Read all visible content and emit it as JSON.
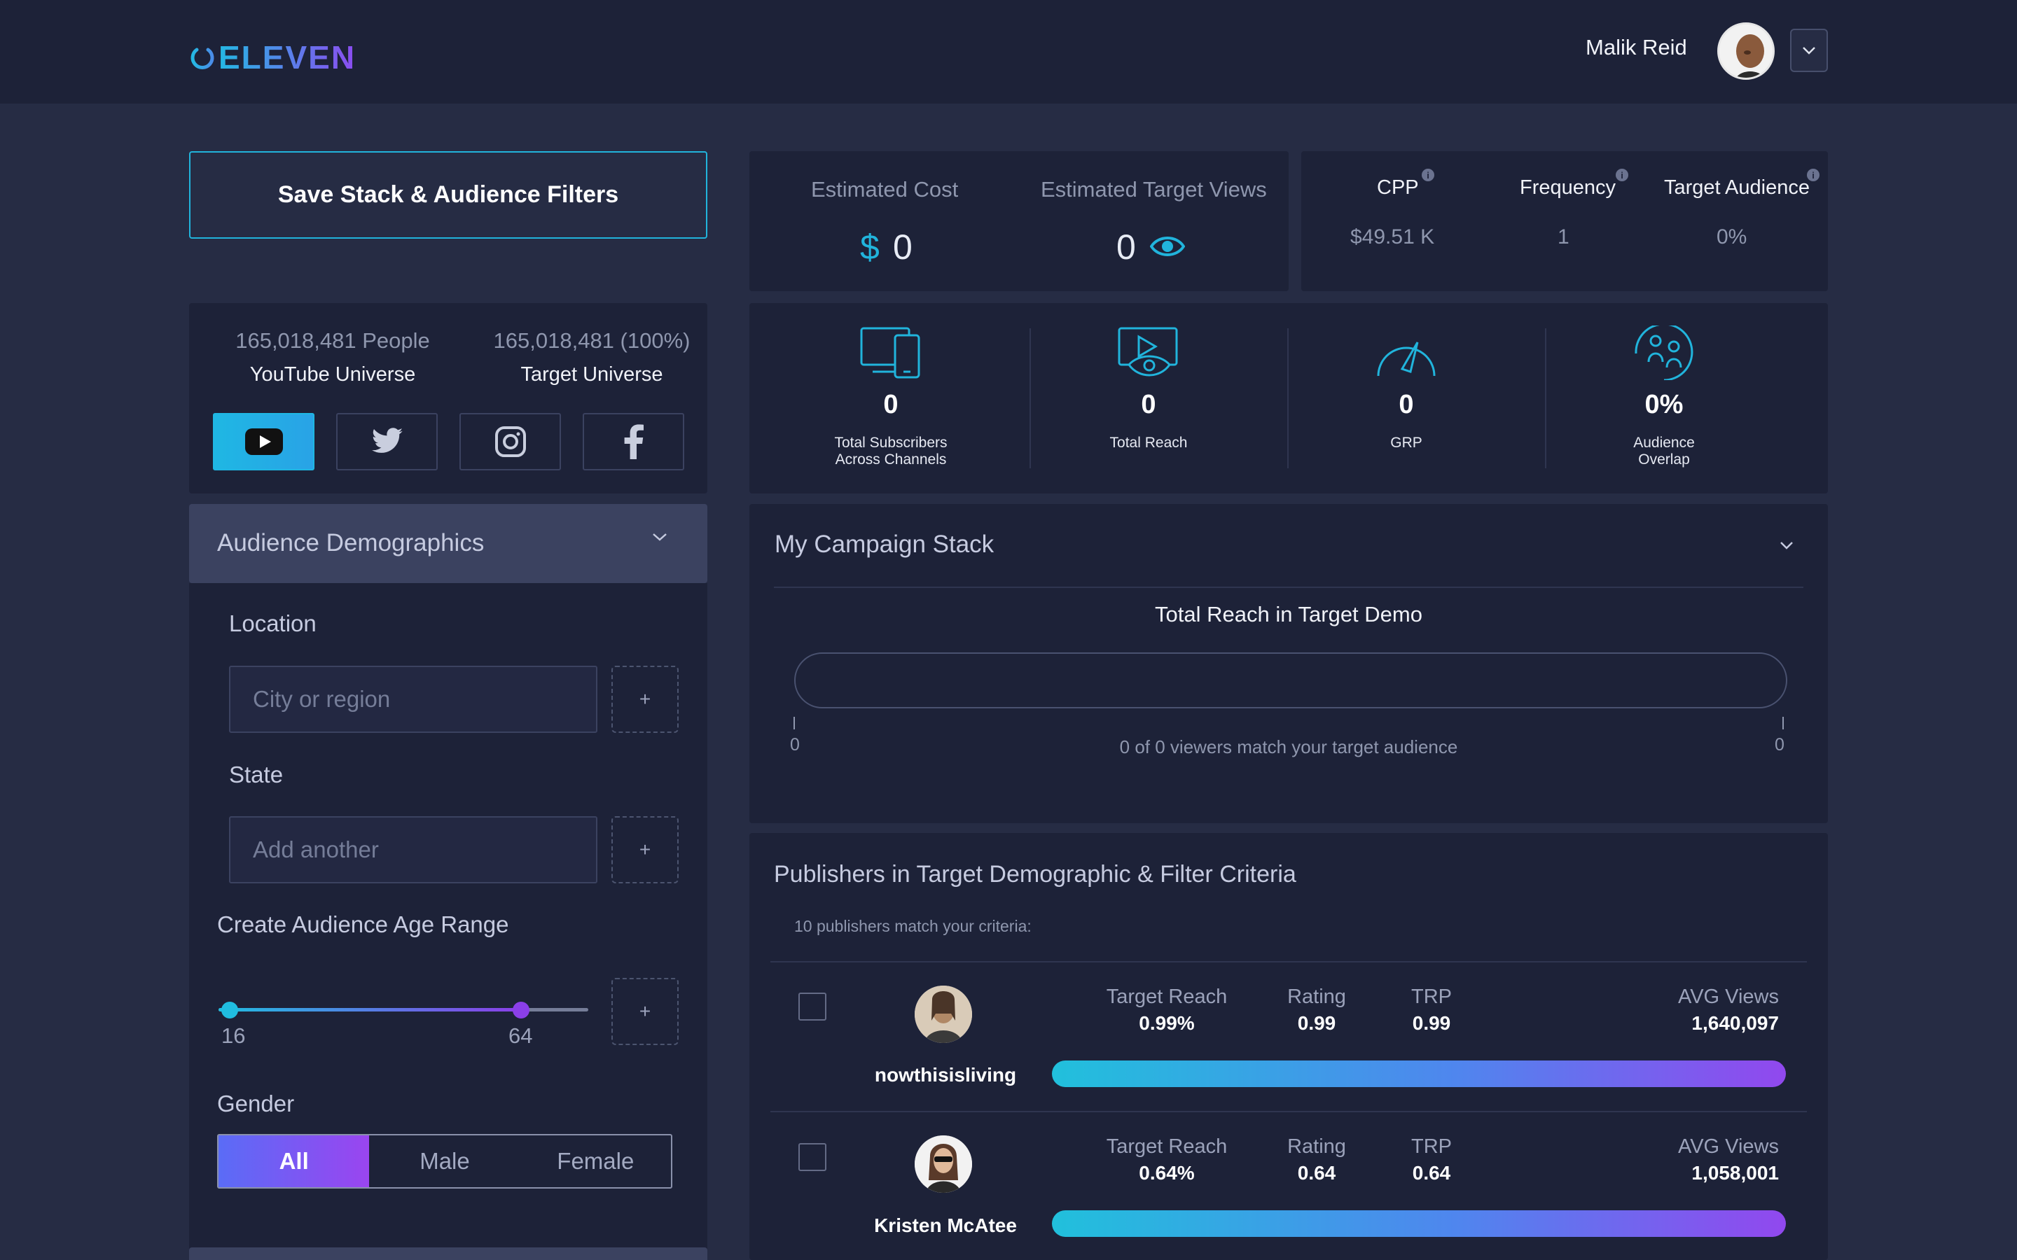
{
  "header": {
    "logo_text": "ELEVEN",
    "user_name": "Malik Reid"
  },
  "sidebar": {
    "save_button": "Save Stack & Audience Filters",
    "universe": {
      "youtube_people": "165,018,481 People",
      "youtube_label": "YouTube Universe",
      "target_people": "165,018,481 (100%)",
      "target_label": "Target Universe"
    },
    "platforms": [
      {
        "name": "youtube",
        "icon": "youtube-icon",
        "active": true
      },
      {
        "name": "twitter",
        "icon": "twitter-icon",
        "active": false
      },
      {
        "name": "instagram",
        "icon": "instagram-icon",
        "active": false
      },
      {
        "name": "facebook",
        "icon": "facebook-icon",
        "active": false
      }
    ],
    "demographics": {
      "title": "Audience Demographics",
      "location_label": "Location",
      "location_placeholder": "City or region",
      "state_label": "State",
      "state_placeholder": "Add another",
      "age_label": "Create Audience Age Range",
      "age_min": "16",
      "age_max": "64",
      "plus": "+",
      "gender_label": "Gender",
      "gender_options": [
        "All",
        "Male",
        "Female"
      ],
      "gender_selected": "All"
    }
  },
  "stats": {
    "estimated_cost_label": "Estimated Cost",
    "currency_symbol": "$",
    "estimated_cost_value": "0",
    "estimated_views_label": "Estimated Target Views",
    "estimated_views_value": "0",
    "cpp_label": "CPP",
    "cpp_value": "$49.51 K",
    "frequency_label": "Frequency",
    "frequency_value": "1",
    "target_audience_label": "Target Audience",
    "target_audience_value": "0%",
    "info_glyph": "i"
  },
  "metrics": [
    {
      "value": "0",
      "label_line1": "Total Subscribers",
      "label_line2": "Across Channels",
      "icon": "devices-icon"
    },
    {
      "value": "0",
      "label_line1": "Total Reach",
      "label_line2": "",
      "icon": "screen-eye-icon"
    },
    {
      "value": "0",
      "label_line1": "GRP",
      "label_line2": "",
      "icon": "gauge-icon"
    },
    {
      "value": "0%",
      "label_line1": "Audience",
      "label_line2": "Overlap",
      "icon": "audience-overlap-icon"
    }
  ],
  "campaign_stack": {
    "title": "My Campaign Stack",
    "reach_title": "Total Reach in Target Demo",
    "min_label": "0",
    "max_label": "0",
    "note": "0 of 0 viewers match your target audience"
  },
  "publishers": {
    "title": "Publishers in Target Demographic & Filter Criteria",
    "count_text": "10 publishers match your criteria:",
    "columns": {
      "target_reach": "Target Reach",
      "rating": "Rating",
      "trp": "TRP",
      "avg_views": "AVG Views"
    },
    "rows": [
      {
        "name": "nowthisisliving",
        "target_reach": "0.99%",
        "rating": "0.99",
        "trp": "0.99",
        "avg_views": "1,640,097"
      },
      {
        "name": "Kristen McAtee",
        "target_reach": "0.64%",
        "rating": "0.64",
        "trp": "0.64",
        "avg_views": "1,058,001"
      }
    ]
  },
  "colors": {
    "accent_cyan": "#21b4dc",
    "accent_purple": "#8b4cf0",
    "background": "#262c44",
    "panel": "#1d2238"
  }
}
